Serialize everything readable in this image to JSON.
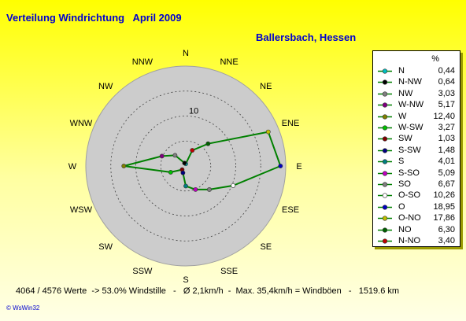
{
  "title": "Verteilung Windrichtung   April 2009",
  "location": "Ballersbach, Hessen",
  "legend_unit": "%",
  "stats_line": "4064 / 4576 Werte  -> 53.0% Windstille   -   Ø 2,1km/h  -  Max. 35,4km/h = Windböen   -   1519.6 km",
  "credit": "© WsWin32",
  "colors": {
    "background_top": "#ffff00",
    "plot_circle": "#cccccc",
    "polygon_line": "#008000",
    "title_text": "#0000d0"
  },
  "chart_data": {
    "type": "radar",
    "rmax": 20,
    "ring_label": "10",
    "ring_label_value": 10,
    "grid_rings": [
      5,
      10,
      15,
      20
    ],
    "grid_style": "dashed",
    "legend_position": "right",
    "categories": [
      "N",
      "NNE",
      "NE",
      "ENE",
      "E",
      "ESE",
      "SE",
      "SSE",
      "S",
      "SSW",
      "SW",
      "WSW",
      "W",
      "WNW",
      "NW",
      "NNW"
    ],
    "series": [
      {
        "name": "N",
        "direction": "N",
        "value": 0.44,
        "color": "#00c0c0"
      },
      {
        "name": "N-NW",
        "direction": "NNW",
        "value": 0.64,
        "color": "#000000"
      },
      {
        "name": "NW",
        "direction": "NW",
        "value": 3.03,
        "color": "#808080"
      },
      {
        "name": "W-NW",
        "direction": "WNW",
        "value": 5.17,
        "color": "#800080"
      },
      {
        "name": "W",
        "direction": "W",
        "value": 12.4,
        "color": "#808000"
      },
      {
        "name": "W-SW",
        "direction": "WSW",
        "value": 3.27,
        "color": "#00c000"
      },
      {
        "name": "SW",
        "direction": "SW",
        "value": 1.03,
        "color": "#800000"
      },
      {
        "name": "S-SW",
        "direction": "SSW",
        "value": 1.48,
        "color": "#000080"
      },
      {
        "name": "S",
        "direction": "S",
        "value": 4.01,
        "color": "#008080"
      },
      {
        "name": "S-SO",
        "direction": "SSE",
        "value": 5.09,
        "color": "#c000c0"
      },
      {
        "name": "SO",
        "direction": "SE",
        "value": 6.67,
        "color": "#808080"
      },
      {
        "name": "O-SO",
        "direction": "ESE",
        "value": 10.26,
        "color": "#ffffff"
      },
      {
        "name": "O",
        "direction": "E",
        "value": 18.95,
        "color": "#0000c0"
      },
      {
        "name": "O-NO",
        "direction": "ENE",
        "value": 17.86,
        "color": "#c0c000"
      },
      {
        "name": "NO",
        "direction": "NE",
        "value": 6.3,
        "color": "#006000"
      },
      {
        "name": "N-NO",
        "direction": "NNE",
        "value": 3.4,
        "color": "#c00000"
      }
    ]
  }
}
